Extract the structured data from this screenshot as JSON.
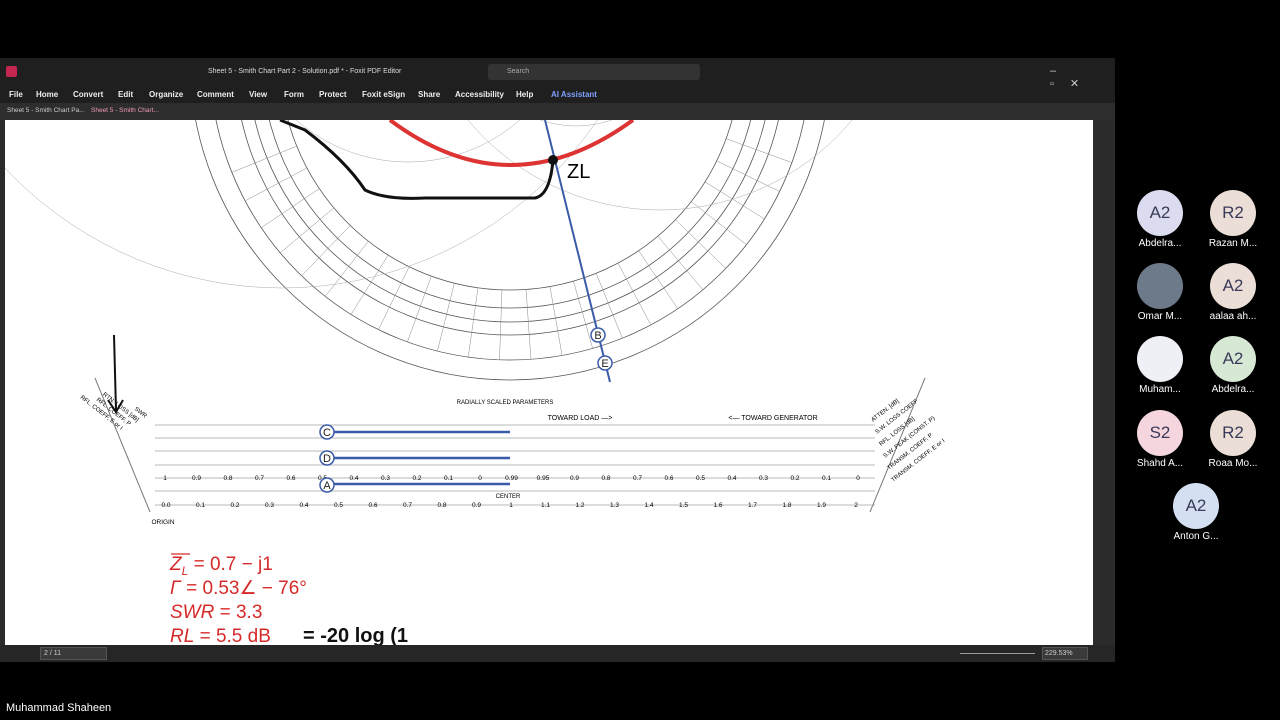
{
  "app": {
    "title": "Sheet 5 - Smith Chart Part 2 - Solution.pdf * - Foxit PDF Editor",
    "search": "Search",
    "menu": [
      "File",
      "Home",
      "Convert",
      "Edit",
      "Organize",
      "Comment",
      "View",
      "Form",
      "Protect",
      "Foxit eSign",
      "Share",
      "Accessibility",
      "Help",
      "AI Assistant"
    ],
    "tabs": [
      "Sheet 5 - Smith Chart Pa...",
      "Sheet 5 - Smith Chart..."
    ],
    "page": "2 / 11",
    "zoom": "229.53%"
  },
  "document": {
    "scale_title": "RADIALLY SCALED PARAMETERS",
    "toward_load": "TOWARD LOAD —>",
    "toward_generator": "<— TOWARD GENERATOR",
    "center": "CENTER",
    "origin": "ORIGIN",
    "left_labels": [
      "SWR",
      "RTN. LOSS [dB]",
      "RFL. COEFF, P",
      "RFL. COEFF, E or I"
    ],
    "right_labels": [
      "ATTEN. [dB]",
      "S.W. LOSS COEFF",
      "RFL. LOSS [dB]",
      "S.W. PEAK (CONST. P)",
      "TRANSM. COEFF, P",
      "TRANSM. COEFF, E or I"
    ],
    "bottom_scale": [
      "0.0",
      "0.1",
      "0.2",
      "0.3",
      "0.4",
      "0.5",
      "0.6",
      "0.7",
      "0.8",
      "0.9",
      "1",
      "1.1",
      "1.2",
      "1.3",
      "1.4",
      "1.5",
      "1.6",
      "1.7",
      "1.8",
      "1.9",
      "2"
    ],
    "rfl_coeff_row": [
      "1",
      "0.9",
      "0.8",
      "0.7",
      "0.6",
      "0.5",
      "0.4",
      "0.3",
      "0.2",
      "0.1",
      "0",
      "0.99",
      "0.95",
      "0.9",
      "0.8",
      "0.7",
      "0.6",
      "0.5",
      "0.4",
      "0.3",
      "0.2",
      "0.1",
      "0"
    ],
    "point_labels": [
      "A",
      "B",
      "C",
      "D",
      "E"
    ],
    "zl_note": "ZL",
    "equations": [
      {
        "lhs": "Z",
        "sub": "L",
        "rhs": " =   0.7 − j1"
      },
      {
        "lhs": "Γ",
        "sub": "",
        "rhs": " = 0.53∠ − 76°"
      },
      {
        "lhs": "SWR",
        "sub": "",
        "rhs": " = 3.3"
      },
      {
        "lhs": "RL",
        "sub": "",
        "rhs": " = 5.5 dB"
      }
    ],
    "handwritten": "= -20 log (1"
  },
  "participants": [
    {
      "initials": "A2",
      "name": "Abdelra..."
    },
    {
      "initials": "R2",
      "name": "Razan M..."
    },
    {
      "initials": "",
      "name": "Omar M..."
    },
    {
      "initials": "A2",
      "name": "aalaa ah..."
    },
    {
      "initials": "",
      "name": "Muham..."
    },
    {
      "initials": "A2",
      "name": "Abdelra..."
    },
    {
      "initials": "S2",
      "name": "Shahd A..."
    },
    {
      "initials": "R2",
      "name": "Roaa Mo..."
    },
    {
      "initials": "A2",
      "name": "Anton G..."
    }
  ],
  "speaker": "Muhammad Shaheen"
}
